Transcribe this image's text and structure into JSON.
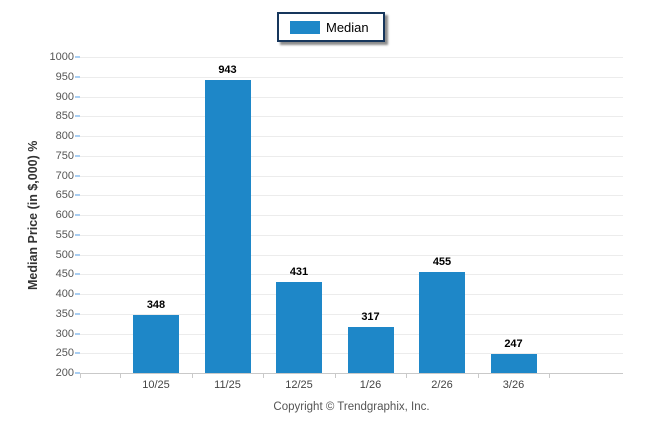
{
  "chart_data": {
    "type": "bar",
    "categories": [
      "10/25",
      "11/25",
      "12/25",
      "1/26",
      "2/26",
      "3/26"
    ],
    "series": [
      {
        "name": "Median",
        "color": "#1E87C8",
        "values": [
          348,
          943,
          431,
          317,
          455,
          247
        ]
      }
    ],
    "ylabel": "Median Price (in $,000) %",
    "xlabel": "",
    "ylim": [
      200,
      1000
    ],
    "ytick_step": 50,
    "grid": true,
    "legend_position": "top-center",
    "value_labels_shown": true,
    "colors": {
      "bar": "#1E87C8",
      "legend_border": "#16365C",
      "gridline": "#ececec",
      "axis_line": "#c9c9c9",
      "y_minor_tick": "#A9CEF2"
    }
  },
  "footer": {
    "copyright": "Copyright © Trendgraphix, Inc."
  }
}
